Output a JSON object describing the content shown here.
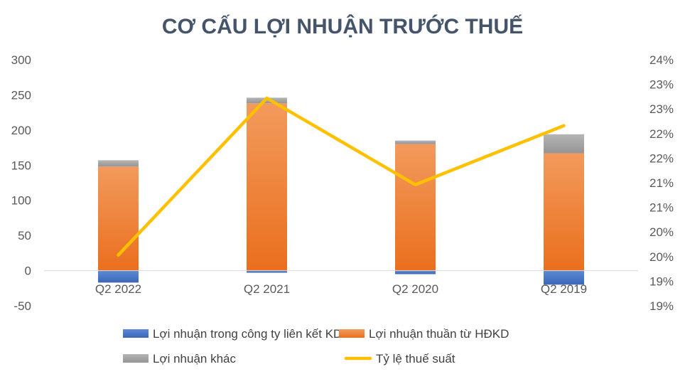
{
  "chart_data": {
    "type": "bar",
    "stacked": true,
    "title": "CƠ CẤU LỢI NHUẬN TRƯỚC THUẾ",
    "categories": [
      "Q2 2022",
      "Q2 2021",
      "Q2 2020",
      "Q2 2019"
    ],
    "series": [
      {
        "name": "Lợi nhuận trong công ty liên kết KD",
        "axis": "left",
        "color": "#4472c4",
        "values": [
          -17,
          -3,
          -5,
          -20
        ]
      },
      {
        "name": "Lợi nhuận thuần từ HĐKD",
        "axis": "left",
        "color": "#ed7d31",
        "values": [
          148,
          238,
          180,
          167
        ]
      },
      {
        "name": "Lợi nhuận khác",
        "axis": "left",
        "color": "#a5a5a5",
        "values": [
          9,
          8,
          5,
          27
        ]
      },
      {
        "name": "Tỷ lệ thuế suất",
        "axis": "right",
        "type": "line",
        "color": "#ffc000",
        "values": [
          0.2003,
          0.2322,
          0.2146,
          0.2266
        ]
      }
    ],
    "y_left": {
      "ylim": [
        -50,
        300
      ],
      "ticks": [
        300,
        250,
        200,
        150,
        100,
        50,
        0,
        -50
      ],
      "tick_labels": [
        "300",
        "250",
        "200",
        "150",
        "100",
        "50",
        "0",
        "-50"
      ]
    },
    "y_right": {
      "ylim": [
        0.19,
        0.24
      ],
      "ticks": [
        0.24,
        0.235,
        0.23,
        0.225,
        0.22,
        0.215,
        0.21,
        0.205,
        0.2,
        0.195,
        0.19
      ],
      "tick_labels": [
        "24%",
        "23%",
        "23%",
        "22%",
        "22%",
        "21%",
        "21%",
        "20%",
        "20%",
        "19%",
        "19%"
      ]
    },
    "legend_position": "bottom",
    "grid": false
  }
}
